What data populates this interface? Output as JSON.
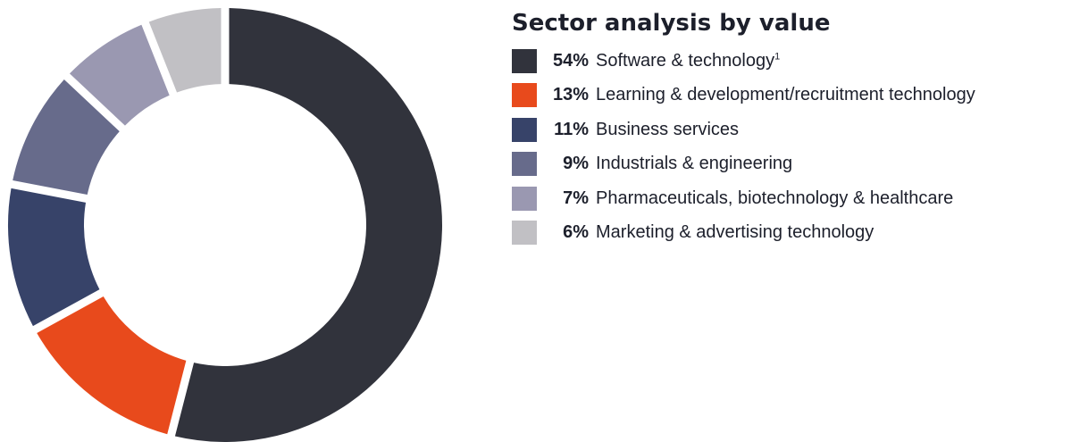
{
  "chart_data": {
    "type": "pie",
    "variant": "donut",
    "title": "Sector analysis by value",
    "legend_position": "right",
    "slices": [
      {
        "label": "Software & technology",
        "footnote": "1",
        "value": 54,
        "display": "54%",
        "color": "#31333c"
      },
      {
        "label": "Learning & development/recruitment technology",
        "footnote": "",
        "value": 13,
        "display": "13%",
        "color": "#e84a1c"
      },
      {
        "label": "Business services",
        "footnote": "",
        "value": 11,
        "display": "11%",
        "color": "#374369"
      },
      {
        "label": "Industrials & engineering",
        "footnote": "",
        "value": 9,
        "display": "9%",
        "color": "#676b8b"
      },
      {
        "label": "Pharmaceuticals, biotechnology & healthcare",
        "footnote": "",
        "value": 7,
        "display": "7%",
        "color": "#9a98b1"
      },
      {
        "label": "Marketing & advertising technology",
        "footnote": "",
        "value": 6,
        "display": "6%",
        "color": "#c1c0c4"
      }
    ]
  }
}
